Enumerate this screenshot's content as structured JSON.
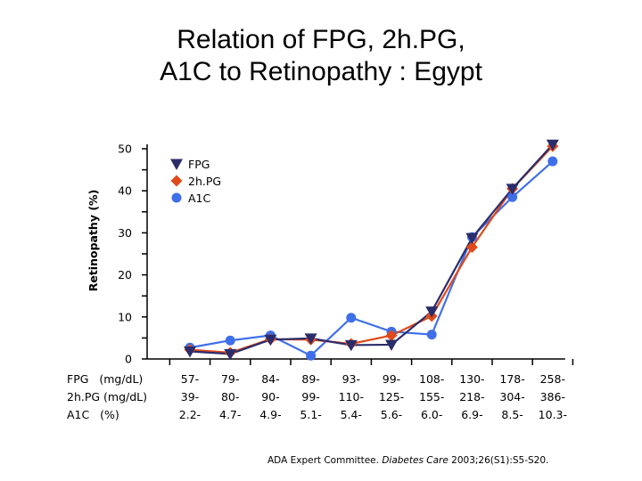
{
  "title_line1": "Relation of FPG, 2h.PG,",
  "title_line2": "A1C to Retinopathy : Egypt",
  "row_labels": [
    "FPG   (mg/dL)",
    "2h.PG (mg/dL)",
    "A1C   (%)"
  ],
  "citation": {
    "authors": "ADA Expert Committee.",
    "journal": "Diabetes Care",
    "ref": "2003;26(S1):S5-S20."
  },
  "chart_data": {
    "type": "line",
    "title": "Relation of FPG, 2h.PG, A1C to Retinopathy : Egypt",
    "ylabel": "Retinopathy (%)",
    "xlabel": "",
    "ylim": [
      0,
      50
    ],
    "yticks": [
      0,
      10,
      20,
      30,
      40,
      50
    ],
    "legend_position": "top-left",
    "categories": [
      [
        "57-",
        "39-",
        "2.2-"
      ],
      [
        "79-",
        "80-",
        "4.7-"
      ],
      [
        "84-",
        "90-",
        "4.9-"
      ],
      [
        "89-",
        "99-",
        "5.1-"
      ],
      [
        "93-",
        "110-",
        "5.4-"
      ],
      [
        "99-",
        "125-",
        "5.6-"
      ],
      [
        "108-",
        "155-",
        "6.0-"
      ],
      [
        "130-",
        "218-",
        "6.9-"
      ],
      [
        "178-",
        "304-",
        "8.5-"
      ],
      [
        "258-",
        "386-",
        "10.3-"
      ]
    ],
    "series": [
      {
        "name": "FPG",
        "color": "#2b2d6b",
        "marker": "triangle-down",
        "values": [
          1.8,
          1.2,
          4.6,
          4.9,
          3.3,
          3.4,
          11.3,
          28.8,
          40.5,
          51.0
        ]
      },
      {
        "name": "2h.PG",
        "color": "#e04a1a",
        "marker": "diamond",
        "values": [
          2.2,
          1.5,
          4.7,
          4.6,
          3.6,
          5.6,
          10.2,
          26.6,
          40.5,
          50.6
        ]
      },
      {
        "name": "A1C",
        "color": "#3f6fe8",
        "marker": "circle",
        "values": [
          2.7,
          4.4,
          5.6,
          0.8,
          9.8,
          6.5,
          5.8,
          29.0,
          38.5,
          47.0
        ]
      }
    ]
  }
}
